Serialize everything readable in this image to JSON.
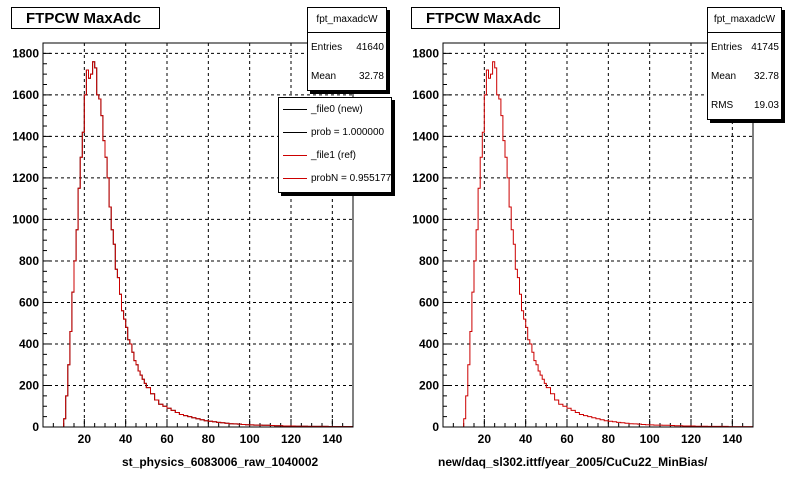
{
  "panels": [
    {
      "title": "FTPCW MaxAdc",
      "stats": {
        "name": "fpt_maxadcW",
        "rows": [
          {
            "label": "Entries",
            "value": "41640"
          },
          {
            "label": "Mean",
            "value": "32.78"
          }
        ]
      },
      "legend": [
        {
          "label": "_file0 (new)",
          "color": "#000000"
        },
        {
          "label": "prob = 1.000000",
          "color": "#000000"
        },
        {
          "label": "_file1 (ref)",
          "color": "#cc0000"
        },
        {
          "label": "probN = 0.955177",
          "color": "#cc0000"
        }
      ],
      "xaxis_caption": "st_physics_6083006_raw_1040002"
    },
    {
      "title": "FTPCW MaxAdc",
      "stats": {
        "name": "fpt_maxadcW",
        "rows": [
          {
            "label": "Entries",
            "value": "41745"
          },
          {
            "label": "Mean",
            "value": "32.78"
          },
          {
            "label": "RMS",
            "value": "19.03"
          }
        ]
      },
      "xaxis_caption": "new/daq_sl302.ittf/year_2005/CuCu22_MinBias/"
    }
  ],
  "chart_data": [
    {
      "type": "histogram",
      "title": "FTPCW MaxAdc",
      "xlim": [
        0,
        150
      ],
      "ylim": [
        0,
        1850
      ],
      "xticks": [
        20,
        40,
        60,
        80,
        100,
        120,
        140
      ],
      "yticks": [
        0,
        200,
        400,
        600,
        800,
        1000,
        1200,
        1400,
        1600,
        1800
      ],
      "grid": true,
      "bin_width": 1,
      "series": [
        {
          "name": "_file0 (new)",
          "color": "#000000",
          "x": [
            9,
            10,
            11,
            12,
            13,
            14,
            15,
            16,
            17,
            18,
            19,
            20,
            21,
            22,
            23,
            24,
            25,
            26,
            27,
            28,
            29,
            30,
            31,
            32,
            33,
            34,
            35,
            36,
            37,
            38,
            39,
            40,
            41,
            42,
            43,
            44,
            45,
            46,
            47,
            48,
            49,
            50,
            52,
            54,
            56,
            58,
            60,
            62,
            64,
            66,
            68,
            70,
            72,
            74,
            76,
            78,
            80,
            82,
            84,
            86,
            88,
            90,
            92,
            94,
            96,
            98,
            100,
            102,
            104,
            106,
            108,
            110,
            112,
            114,
            116,
            118,
            120,
            122,
            124,
            126,
            128,
            130,
            132,
            134,
            136,
            138,
            140,
            142,
            144,
            146,
            148,
            150
          ],
          "y": [
            0,
            40,
            150,
            300,
            460,
            650,
            800,
            950,
            1150,
            1300,
            1420,
            1600,
            1720,
            1680,
            1700,
            1760,
            1730,
            1600,
            1580,
            1500,
            1380,
            1300,
            1200,
            1060,
            950,
            880,
            760,
            720,
            640,
            560,
            520,
            480,
            420,
            400,
            360,
            320,
            300,
            270,
            250,
            230,
            210,
            190,
            160,
            130,
            110,
            100,
            90,
            80,
            70,
            60,
            55,
            50,
            45,
            40,
            35,
            30,
            28,
            25,
            22,
            20,
            18,
            16,
            15,
            14,
            12,
            11,
            10,
            9,
            9,
            8,
            8,
            7,
            6,
            6,
            5,
            5,
            5,
            4,
            4,
            4,
            3,
            3,
            3,
            3,
            3,
            2,
            2,
            2,
            2,
            2,
            2,
            1
          ]
        },
        {
          "name": "_file1 (ref)",
          "color": "#cc0000",
          "x": [
            9,
            10,
            11,
            12,
            13,
            14,
            15,
            16,
            17,
            18,
            19,
            20,
            21,
            22,
            23,
            24,
            25,
            26,
            27,
            28,
            29,
            30,
            31,
            32,
            33,
            34,
            35,
            36,
            37,
            38,
            39,
            40,
            41,
            42,
            43,
            44,
            45,
            46,
            47,
            48,
            49,
            50,
            52,
            54,
            56,
            58,
            60,
            62,
            64,
            66,
            68,
            70,
            72,
            74,
            76,
            78,
            80,
            82,
            84,
            86,
            88,
            90,
            92,
            94,
            96,
            98,
            100,
            102,
            104,
            106,
            108,
            110,
            112,
            114,
            116,
            118,
            120,
            122,
            124,
            126,
            128,
            130,
            132,
            134,
            136,
            138,
            140,
            142,
            144,
            146,
            148,
            150
          ],
          "y": [
            0,
            40,
            150,
            300,
            460,
            650,
            800,
            950,
            1150,
            1300,
            1420,
            1600,
            1720,
            1680,
            1700,
            1760,
            1730,
            1600,
            1580,
            1500,
            1380,
            1300,
            1200,
            1060,
            950,
            880,
            760,
            720,
            640,
            560,
            520,
            480,
            420,
            400,
            360,
            320,
            300,
            270,
            250,
            230,
            210,
            190,
            160,
            130,
            110,
            100,
            90,
            80,
            70,
            60,
            55,
            50,
            45,
            40,
            35,
            30,
            28,
            25,
            22,
            20,
            18,
            16,
            15,
            14,
            12,
            11,
            10,
            9,
            9,
            8,
            8,
            7,
            6,
            6,
            5,
            5,
            5,
            4,
            4,
            4,
            3,
            3,
            3,
            3,
            3,
            2,
            2,
            2,
            2,
            2,
            2,
            1
          ]
        }
      ]
    },
    {
      "type": "histogram",
      "title": "FTPCW MaxAdc",
      "xlim": [
        0,
        150
      ],
      "ylim": [
        0,
        1850
      ],
      "xticks": [
        20,
        40,
        60,
        80,
        100,
        120,
        140
      ],
      "yticks": [
        0,
        200,
        400,
        600,
        800,
        1000,
        1200,
        1400,
        1600,
        1800
      ],
      "grid": true,
      "bin_width": 1,
      "series": [
        {
          "color": "#cc0000",
          "x": [
            9,
            10,
            11,
            12,
            13,
            14,
            15,
            16,
            17,
            18,
            19,
            20,
            21,
            22,
            23,
            24,
            25,
            26,
            27,
            28,
            29,
            30,
            31,
            32,
            33,
            34,
            35,
            36,
            37,
            38,
            39,
            40,
            41,
            42,
            43,
            44,
            45,
            46,
            47,
            48,
            49,
            50,
            52,
            54,
            56,
            58,
            60,
            62,
            64,
            66,
            68,
            70,
            72,
            74,
            76,
            78,
            80,
            82,
            84,
            86,
            88,
            90,
            92,
            94,
            96,
            98,
            100,
            102,
            104,
            106,
            108,
            110,
            112,
            114,
            116,
            118,
            120,
            122,
            124,
            126,
            128,
            130,
            132,
            134,
            136,
            138,
            140,
            142,
            144,
            146,
            148,
            150
          ],
          "y": [
            0,
            40,
            150,
            300,
            460,
            650,
            800,
            950,
            1150,
            1300,
            1420,
            1600,
            1720,
            1680,
            1700,
            1760,
            1730,
            1600,
            1580,
            1500,
            1380,
            1300,
            1200,
            1060,
            950,
            880,
            760,
            720,
            640,
            560,
            520,
            480,
            420,
            400,
            360,
            320,
            300,
            270,
            250,
            230,
            210,
            190,
            160,
            130,
            110,
            100,
            90,
            80,
            70,
            60,
            55,
            50,
            45,
            40,
            35,
            30,
            28,
            25,
            22,
            20,
            18,
            16,
            15,
            14,
            12,
            11,
            10,
            9,
            9,
            8,
            8,
            7,
            6,
            6,
            5,
            5,
            5,
            4,
            4,
            4,
            3,
            3,
            3,
            3,
            3,
            2,
            2,
            2,
            2,
            2,
            2,
            1
          ]
        }
      ]
    }
  ]
}
